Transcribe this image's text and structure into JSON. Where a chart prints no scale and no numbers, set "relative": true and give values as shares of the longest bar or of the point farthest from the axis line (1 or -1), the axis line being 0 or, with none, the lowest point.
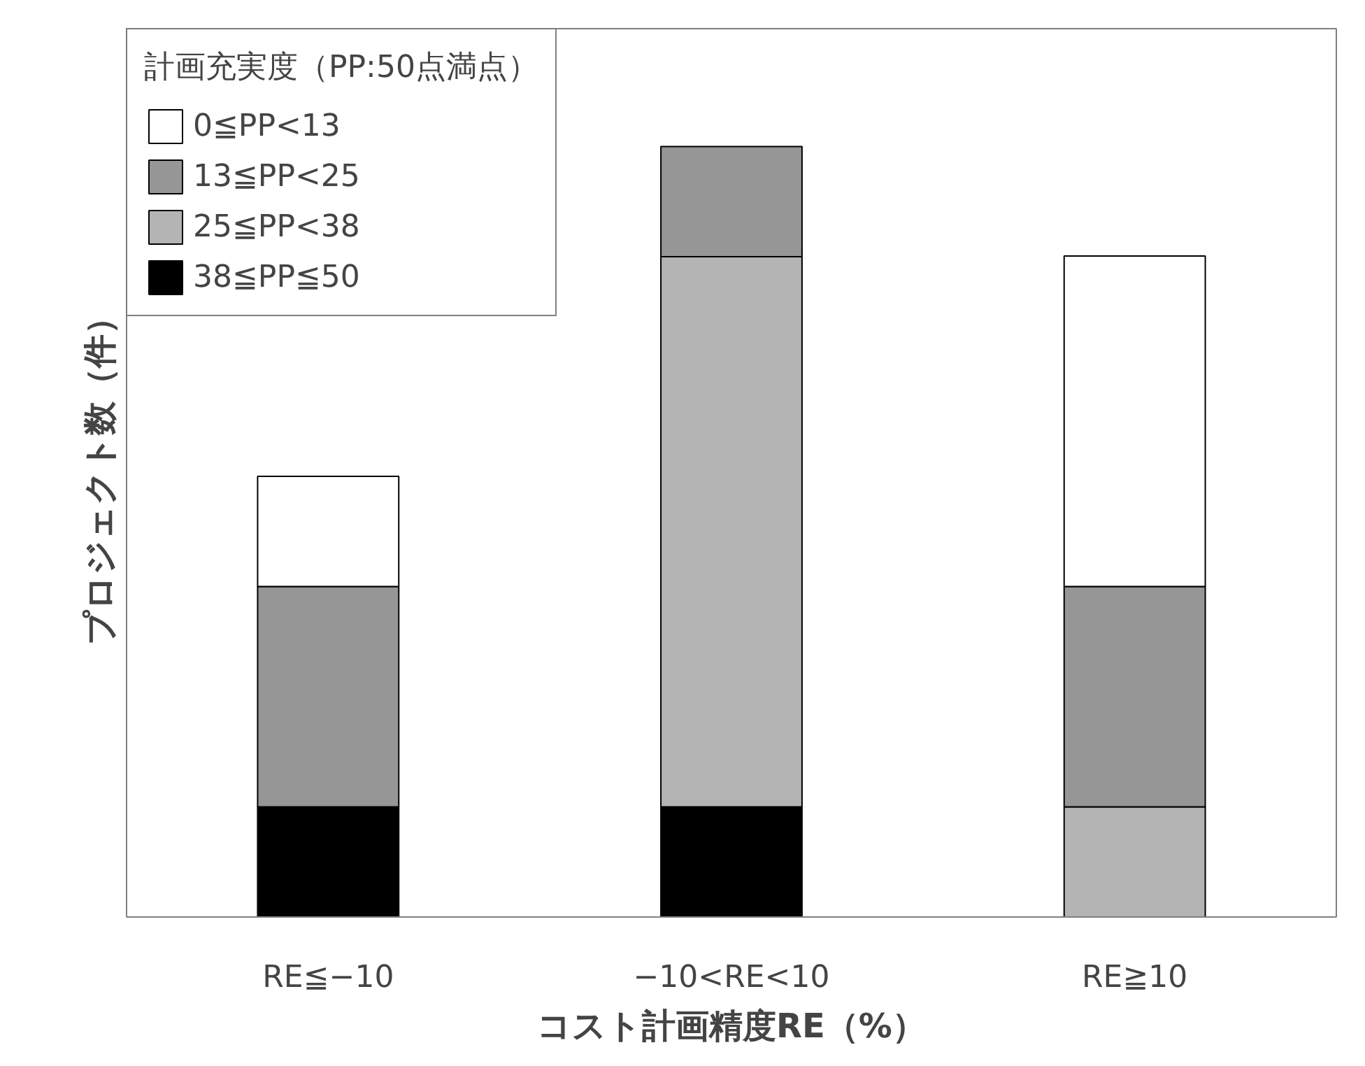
{
  "chart_data": {
    "type": "bar",
    "stacked": true,
    "relative": true,
    "xlabel": "コスト計画精度RE（%）",
    "ylabel": "プロジェクト数（件）",
    "legend_title": "計画充実度（PP:50点満点）",
    "legend": "top left",
    "grid": false,
    "categories": [
      "RE≦−10",
      "−10<RE<10",
      "RE≧10"
    ],
    "series": [
      {
        "name": "38≦PP≦50",
        "color": "#000000",
        "values": [
          0.143,
          0.143,
          null
        ]
      },
      {
        "name": "25≦PP<38",
        "color": "#b4b4b4",
        "values": [
          null,
          0.714,
          0.143
        ]
      },
      {
        "name": "13≦PP<25",
        "color": "#969696",
        "values": [
          0.286,
          0.143,
          0.286
        ]
      },
      {
        "name": "0≦PP<13",
        "color": "#ffffff",
        "values": [
          0.143,
          null,
          0.429
        ]
      }
    ]
  }
}
